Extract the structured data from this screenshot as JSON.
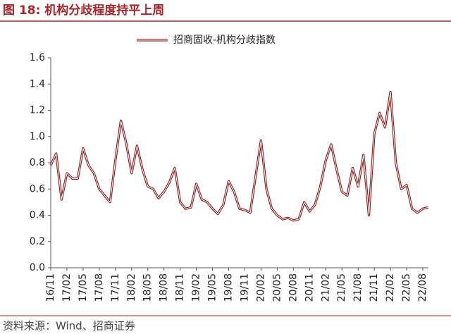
{
  "title": "图 18:  机构分歧程度持平上周",
  "source": "资料来源：Wind、招商证券",
  "chart_data": {
    "type": "line",
    "categories": [
      "16/11",
      null,
      null,
      "17/02",
      null,
      null,
      "17/05",
      null,
      null,
      "17/08",
      null,
      null,
      "17/11",
      null,
      null,
      "18/02",
      null,
      null,
      "18/05",
      null,
      null,
      "18/08",
      null,
      null,
      "18/11",
      null,
      null,
      "19/02",
      null,
      null,
      "19/05",
      null,
      null,
      "19/08",
      null,
      null,
      "19/11",
      null,
      null,
      "20/02",
      null,
      null,
      "20/05",
      null,
      null,
      "20/08",
      null,
      null,
      "20/11",
      null,
      null,
      "21/02",
      null,
      null,
      "21/05",
      null,
      null,
      "21/08",
      null,
      null,
      "21/11",
      null,
      null,
      "22/02",
      null,
      null,
      "22/05",
      null,
      null,
      "22/08",
      null
    ],
    "series": [
      {
        "name": "招商固收-机构分歧指数",
        "color": "#8b1a1a",
        "values": [
          0.78,
          0.87,
          0.52,
          0.72,
          0.68,
          0.68,
          0.91,
          0.78,
          0.72,
          0.6,
          0.55,
          0.5,
          0.82,
          1.12,
          0.95,
          0.72,
          0.93,
          0.75,
          0.62,
          0.6,
          0.53,
          0.58,
          0.65,
          0.76,
          0.5,
          0.45,
          0.46,
          0.64,
          0.52,
          0.5,
          0.45,
          0.41,
          0.48,
          0.66,
          0.58,
          0.45,
          0.44,
          0.42,
          0.7,
          0.97,
          0.6,
          0.45,
          0.4,
          0.37,
          0.38,
          0.36,
          0.37,
          0.5,
          0.43,
          0.48,
          0.62,
          0.82,
          0.94,
          0.75,
          0.58,
          0.55,
          0.76,
          0.62,
          0.86,
          0.4,
          1.02,
          1.18,
          1.07,
          1.34,
          0.8,
          0.6,
          0.63,
          0.45,
          0.42,
          0.45,
          0.46
        ]
      }
    ],
    "ylim": [
      0,
      1.6
    ],
    "yticks": [
      {
        "value": 0,
        "label": "0.0"
      },
      0.2,
      0.4,
      0.6,
      0.8,
      {
        "value": 1,
        "label": "1.0"
      },
      1.2,
      1.4,
      1.6
    ],
    "legend": "top"
  }
}
